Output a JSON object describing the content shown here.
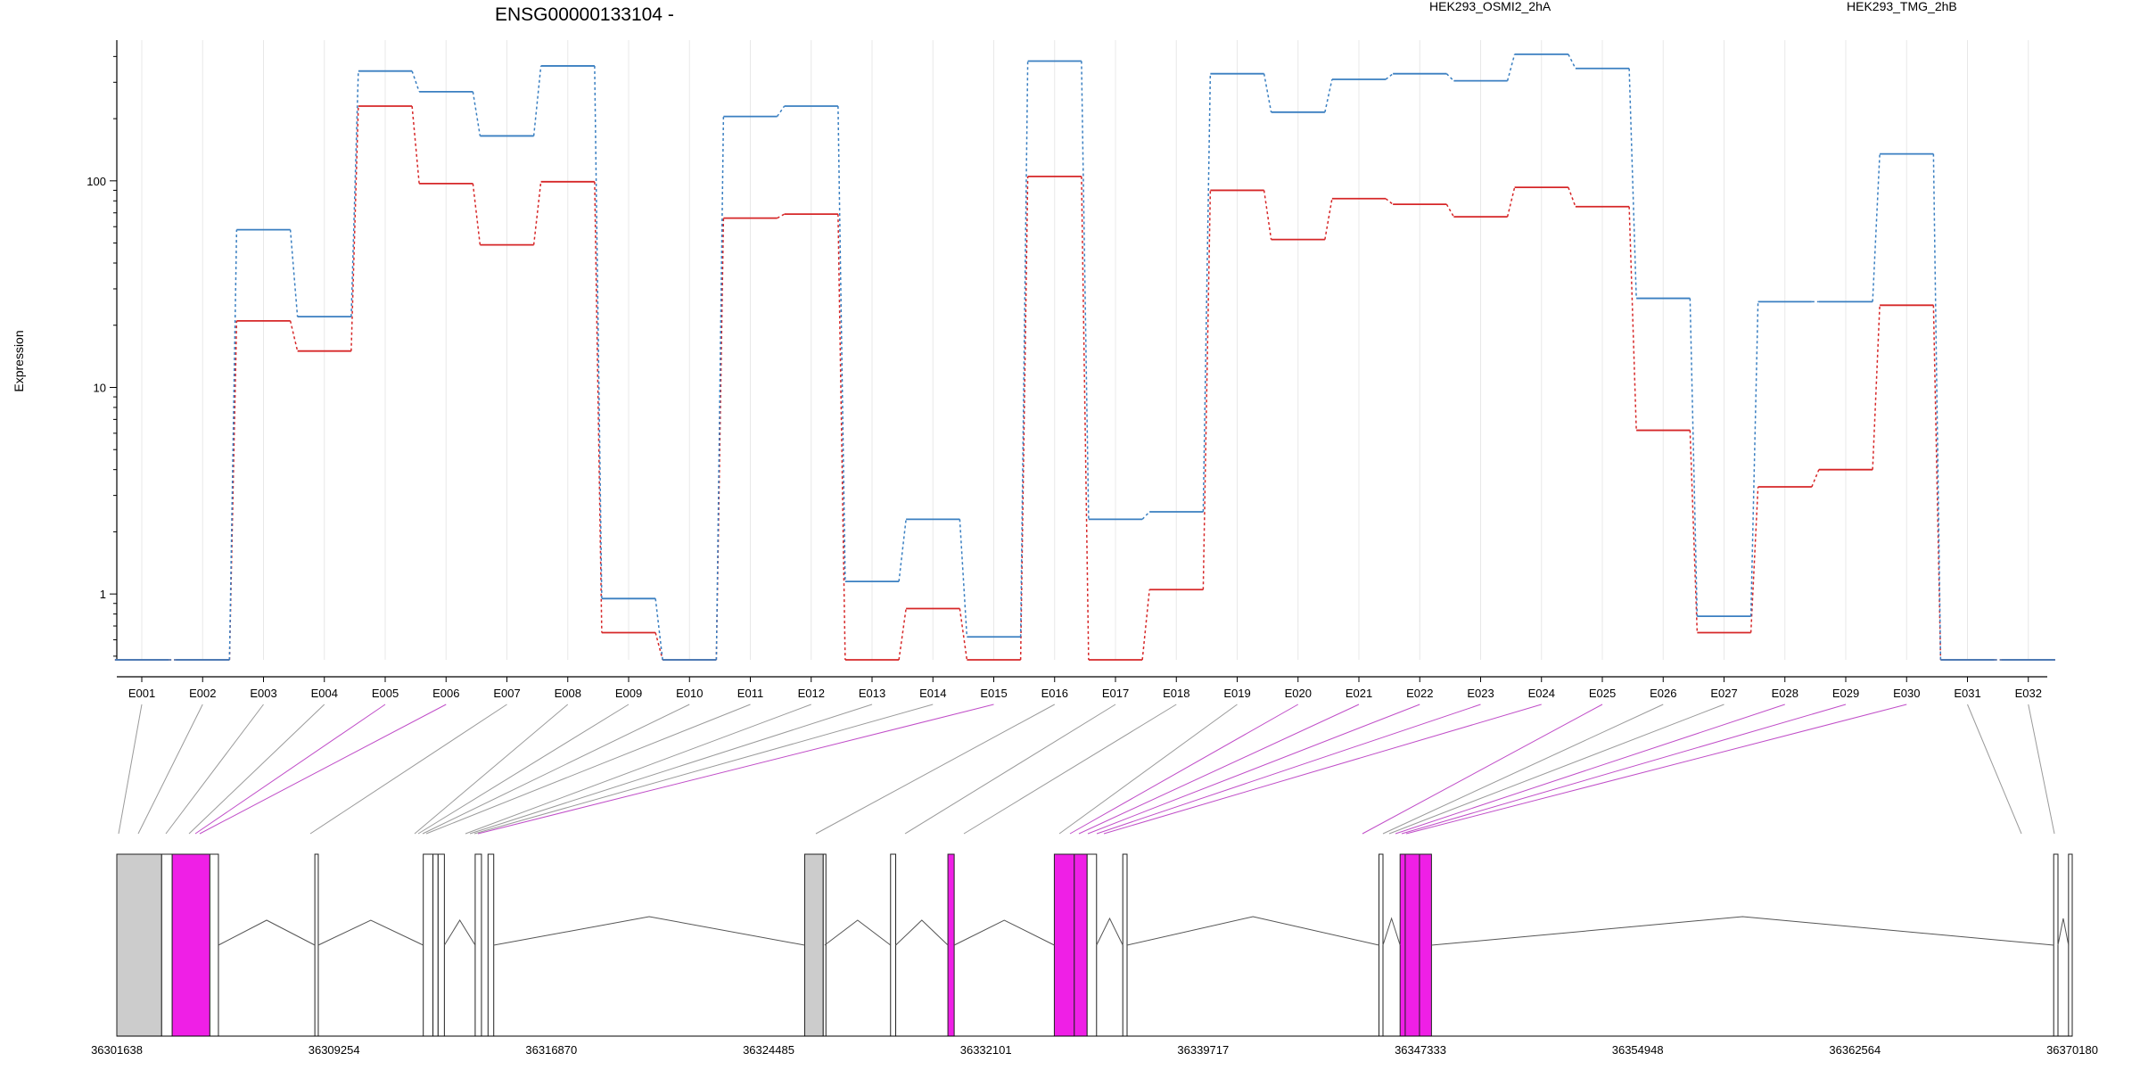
{
  "title": "ENSG00000133104 -",
  "colors": {
    "series_a": "#d62728",
    "series_b": "#3a7fc1",
    "highlight": "#ef1fe6",
    "exon_gray": "#cccccc",
    "connector_gray": "#9a9a9a",
    "connector_magenta": "#c04ec8",
    "grid": "#e8e8e8"
  },
  "chart_data": {
    "type": "line",
    "ylabel": "Expression",
    "yscale": "log",
    "ylim": [
      0.48,
      480
    ],
    "ytick_labels": [
      "1",
      "10",
      "100"
    ],
    "ytick_values": [
      1,
      10,
      100
    ],
    "categories": [
      "E001",
      "E002",
      "E003",
      "E004",
      "E005",
      "E006",
      "E007",
      "E008",
      "E009",
      "E010",
      "E011",
      "E012",
      "E013",
      "E014",
      "E015",
      "E016",
      "E017",
      "E018",
      "E019",
      "E020",
      "E021",
      "E022",
      "E023",
      "E024",
      "E025",
      "E026",
      "E027",
      "E028",
      "E029",
      "E030",
      "E031",
      "E032"
    ],
    "series": [
      {
        "name": "HEK293_OSMI2_2hA",
        "color": "#d62728",
        "values": [
          0.48,
          0.48,
          21,
          15,
          230,
          97,
          49,
          99,
          0.65,
          0.48,
          66,
          69,
          0.48,
          0.85,
          0.48,
          105,
          0.48,
          1.05,
          90,
          52,
          82,
          77,
          67,
          93,
          75,
          6.2,
          0.65,
          3.3,
          4.0,
          25,
          0.48,
          0.48
        ]
      },
      {
        "name": "HEK293_TMG_2hB",
        "color": "#3a7fc1",
        "values": [
          0.48,
          0.48,
          58,
          22,
          340,
          270,
          165,
          360,
          0.95,
          0.48,
          205,
          230,
          1.15,
          2.3,
          0.62,
          380,
          2.3,
          2.5,
          330,
          215,
          310,
          330,
          305,
          410,
          350,
          27,
          0.78,
          26,
          26,
          135,
          0.48,
          0.48
        ]
      }
    ],
    "highlighted_exons": [
      "E005",
      "E006",
      "E015",
      "E020",
      "E021",
      "E022",
      "E023",
      "E024",
      "E025",
      "E028",
      "E029",
      "E030"
    ],
    "genomic_axis": {
      "tick_labels": [
        "36301638",
        "36309254",
        "36316870",
        "36324485",
        "36332101",
        "36339717",
        "36347333",
        "36354948",
        "36362564",
        "36370180"
      ],
      "range": [
        36301638,
        36370180
      ]
    }
  }
}
